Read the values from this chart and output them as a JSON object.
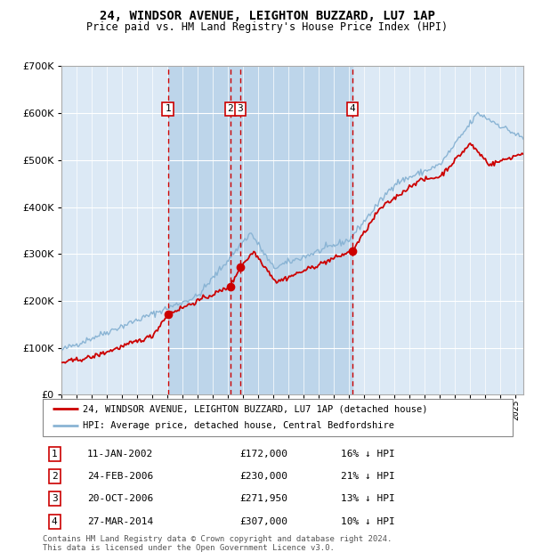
{
  "title": "24, WINDSOR AVENUE, LEIGHTON BUZZARD, LU7 1AP",
  "subtitle": "Price paid vs. HM Land Registry's House Price Index (HPI)",
  "legend_line1": "24, WINDSOR AVENUE, LEIGHTON BUZZARD, LU7 1AP (detached house)",
  "legend_line2": "HPI: Average price, detached house, Central Bedfordshire",
  "footer_line1": "Contains HM Land Registry data © Crown copyright and database right 2024.",
  "footer_line2": "This data is licensed under the Open Government Licence v3.0.",
  "sales": [
    {
      "num": 1,
      "date_label": "11-JAN-2002",
      "date_x": 2002.03,
      "price": 172000,
      "pct": "16%"
    },
    {
      "num": 2,
      "date_label": "24-FEB-2006",
      "date_x": 2006.15,
      "price": 230000,
      "pct": "21%"
    },
    {
      "num": 3,
      "date_label": "20-OCT-2006",
      "date_x": 2006.8,
      "price": 271950,
      "pct": "13%"
    },
    {
      "num": 4,
      "date_label": "27-MAR-2014",
      "date_x": 2014.23,
      "price": 307000,
      "pct": "10%"
    }
  ],
  "table_rows": [
    {
      "num": 1,
      "date": "11-JAN-2002",
      "price": "£172,000",
      "pct": "16% ↓ HPI"
    },
    {
      "num": 2,
      "date": "24-FEB-2006",
      "price": "£230,000",
      "pct": "21% ↓ HPI"
    },
    {
      "num": 3,
      "date": "20-OCT-2006",
      "price": "£271,950",
      "pct": "13% ↓ HPI"
    },
    {
      "num": 4,
      "date": "27-MAR-2014",
      "price": "£307,000",
      "pct": "10% ↓ HPI"
    }
  ],
  "xmin": 1995.0,
  "xmax": 2025.5,
  "ymin": 0,
  "ymax": 700000,
  "background_color": "#ffffff",
  "plot_bg_color": "#dce9f5",
  "shaded_region_color": "#bdd5ea",
  "red_line_color": "#cc0000",
  "blue_line_color": "#8ab4d4",
  "grid_color": "#ffffff",
  "vline_color": "#cc0000",
  "sale_marker_prices": [
    172000,
    230000,
    271950,
    307000
  ]
}
